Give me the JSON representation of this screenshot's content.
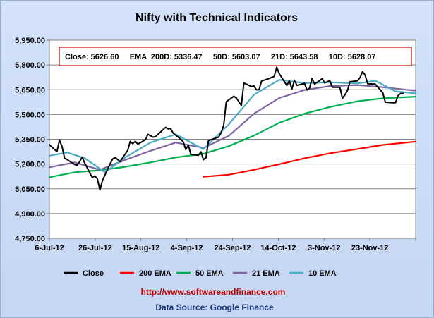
{
  "chart_data": {
    "type": "line",
    "title": "Nifty with Technical Indicators",
    "xlabel": "",
    "ylabel": "",
    "ylim": [
      4750,
      5950
    ],
    "yticks": [
      4750,
      4900,
      5050,
      5200,
      5350,
      5500,
      5650,
      5800,
      5950
    ],
    "ytick_labels": [
      "4,750.00",
      "4,900.00",
      "5,050.00",
      "5,200.00",
      "5,350.00",
      "5,500.00",
      "5,650.00",
      "5,800.00",
      "5,950.00"
    ],
    "xtick_labels": [
      "6-Jul-12",
      "26-Jul-12",
      "15-Aug-12",
      "4-Sep-12",
      "24-Sep-12",
      "14-Oct-12",
      "3-Nov-12",
      "23-Nov-12"
    ],
    "x_start": "6-Jul-12",
    "x_end": "28-Nov-12",
    "grid": true,
    "legend_position": "bottom",
    "info_box": "Close: 5626.60     EMA  200D: 5336.47     50D: 5603.07     21D: 5643.58     10D: 5628.07",
    "series": [
      {
        "name": "Close",
        "color": "#000000",
        "points": [
          [
            "6-Jul-12",
            5317
          ],
          [
            "9-Jul-12",
            5275
          ],
          [
            "10-Jul-12",
            5345
          ],
          [
            "11-Jul-12",
            5306
          ],
          [
            "12-Jul-12",
            5236
          ],
          [
            "13-Jul-12",
            5227
          ],
          [
            "16-Jul-12",
            5197
          ],
          [
            "17-Jul-12",
            5192
          ],
          [
            "18-Jul-12",
            5216
          ],
          [
            "19-Jul-12",
            5242
          ],
          [
            "20-Jul-12",
            5205
          ],
          [
            "23-Jul-12",
            5118
          ],
          [
            "24-Jul-12",
            5128
          ],
          [
            "25-Jul-12",
            5110
          ],
          [
            "26-Jul-12",
            5043
          ],
          [
            "27-Jul-12",
            5100
          ],
          [
            "30-Jul-12",
            5200
          ],
          [
            "31-Jul-12",
            5230
          ],
          [
            "1-Aug-12",
            5240
          ],
          [
            "2-Aug-12",
            5228
          ],
          [
            "3-Aug-12",
            5215
          ],
          [
            "6-Aug-12",
            5283
          ],
          [
            "7-Aug-12",
            5337
          ],
          [
            "8-Aug-12",
            5323
          ],
          [
            "9-Aug-12",
            5338
          ],
          [
            "10-Aug-12",
            5320
          ],
          [
            "13-Aug-12",
            5347
          ],
          [
            "14-Aug-12",
            5380
          ],
          [
            "16-Aug-12",
            5363
          ],
          [
            "17-Aug-12",
            5366
          ],
          [
            "21-Aug-12",
            5422
          ],
          [
            "22-Aug-12",
            5413
          ],
          [
            "23-Aug-12",
            5415
          ],
          [
            "24-Aug-12",
            5387
          ],
          [
            "27-Aug-12",
            5350
          ],
          [
            "28-Aug-12",
            5334
          ],
          [
            "29-Aug-12",
            5288
          ],
          [
            "30-Aug-12",
            5315
          ],
          [
            "31-Aug-12",
            5258
          ],
          [
            "3-Sep-12",
            5253
          ],
          [
            "4-Sep-12",
            5274
          ],
          [
            "5-Sep-12",
            5226
          ],
          [
            "6-Sep-12",
            5238
          ],
          [
            "7-Sep-12",
            5342
          ],
          [
            "10-Sep-12",
            5358
          ],
          [
            "11-Sep-12",
            5363
          ],
          [
            "12-Sep-12",
            5390
          ],
          [
            "13-Sep-12",
            5435
          ],
          [
            "14-Sep-12",
            5577
          ],
          [
            "17-Sep-12",
            5610
          ],
          [
            "18-Sep-12",
            5600
          ],
          [
            "20-Sep-12",
            5555
          ],
          [
            "21-Sep-12",
            5691
          ],
          [
            "24-Sep-12",
            5669
          ],
          [
            "25-Sep-12",
            5673
          ],
          [
            "26-Sep-12",
            5649
          ],
          [
            "27-Sep-12",
            5650
          ],
          [
            "28-Sep-12",
            5703
          ],
          [
            "1-Oct-12",
            5718
          ],
          [
            "3-Oct-12",
            5731
          ],
          [
            "4-Oct-12",
            5787
          ],
          [
            "5-Oct-12",
            5747
          ],
          [
            "8-Oct-12",
            5676
          ],
          [
            "9-Oct-12",
            5705
          ],
          [
            "10-Oct-12",
            5653
          ],
          [
            "11-Oct-12",
            5708
          ],
          [
            "12-Oct-12",
            5676
          ],
          [
            "15-Oct-12",
            5688
          ],
          [
            "16-Oct-12",
            5648
          ],
          [
            "17-Oct-12",
            5660
          ],
          [
            "18-Oct-12",
            5718
          ],
          [
            "19-Oct-12",
            5684
          ],
          [
            "22-Oct-12",
            5717
          ],
          [
            "23-Oct-12",
            5691
          ],
          [
            "25-Oct-12",
            5705
          ],
          [
            "26-Oct-12",
            5665
          ],
          [
            "29-Oct-12",
            5665
          ],
          [
            "30-Oct-12",
            5598
          ],
          [
            "31-Oct-12",
            5619
          ],
          [
            "1-Nov-12",
            5645
          ],
          [
            "2-Nov-12",
            5698
          ],
          [
            "5-Nov-12",
            5704
          ],
          [
            "6-Nov-12",
            5724
          ],
          [
            "7-Nov-12",
            5760
          ],
          [
            "8-Nov-12",
            5738
          ],
          [
            "9-Nov-12",
            5686
          ],
          [
            "12-Nov-12",
            5684
          ],
          [
            "13-Nov-12",
            5666
          ],
          [
            "15-Nov-12",
            5631
          ],
          [
            "16-Nov-12",
            5574
          ],
          [
            "19-Nov-12",
            5571
          ],
          [
            "20-Nov-12",
            5571
          ],
          [
            "21-Nov-12",
            5614
          ],
          [
            "22-Nov-12",
            5627
          ],
          [
            "23-Nov-12",
            5627
          ]
        ]
      },
      {
        "name": "200 EMA",
        "color": "#ff0000",
        "points": [
          [
            "5-Sep-12",
            5123
          ],
          [
            "15-Sep-12",
            5135
          ],
          [
            "25-Sep-12",
            5165
          ],
          [
            "5-Oct-12",
            5199
          ],
          [
            "15-Oct-12",
            5235
          ],
          [
            "25-Oct-12",
            5265
          ],
          [
            "5-Nov-12",
            5291
          ],
          [
            "15-Nov-12",
            5316
          ],
          [
            "28-Nov-12",
            5336
          ]
        ]
      },
      {
        "name": "50 EMA",
        "color": "#00b050",
        "points": [
          [
            "6-Jul-12",
            5120
          ],
          [
            "16-Jul-12",
            5150
          ],
          [
            "26-Jul-12",
            5162
          ],
          [
            "5-Aug-12",
            5183
          ],
          [
            "15-Aug-12",
            5210
          ],
          [
            "25-Aug-12",
            5240
          ],
          [
            "5-Sep-12",
            5262
          ],
          [
            "15-Sep-12",
            5308
          ],
          [
            "25-Sep-12",
            5372
          ],
          [
            "5-Oct-12",
            5450
          ],
          [
            "15-Oct-12",
            5505
          ],
          [
            "25-Oct-12",
            5545
          ],
          [
            "5-Nov-12",
            5580
          ],
          [
            "15-Nov-12",
            5598
          ],
          [
            "28-Nov-12",
            5608
          ]
        ]
      },
      {
        "name": "21 EMA",
        "color": "#8064a2",
        "points": [
          [
            "6-Jul-12",
            5180
          ],
          [
            "16-Jul-12",
            5210
          ],
          [
            "26-Jul-12",
            5165
          ],
          [
            "5-Aug-12",
            5225
          ],
          [
            "15-Aug-12",
            5280
          ],
          [
            "25-Aug-12",
            5330
          ],
          [
            "5-Sep-12",
            5298
          ],
          [
            "15-Sep-12",
            5370
          ],
          [
            "25-Sep-12",
            5505
          ],
          [
            "5-Oct-12",
            5600
          ],
          [
            "15-Oct-12",
            5648
          ],
          [
            "25-Oct-12",
            5672
          ],
          [
            "5-Nov-12",
            5678
          ],
          [
            "15-Nov-12",
            5665
          ],
          [
            "28-Nov-12",
            5644
          ]
        ]
      },
      {
        "name": "10 EMA",
        "color": "#4bacc6",
        "points": [
          [
            "6-Jul-12",
            5250
          ],
          [
            "13-Jul-12",
            5270
          ],
          [
            "20-Jul-12",
            5235
          ],
          [
            "28-Jul-12",
            5150
          ],
          [
            "5-Aug-12",
            5240
          ],
          [
            "15-Aug-12",
            5330
          ],
          [
            "25-Aug-12",
            5380
          ],
          [
            "5-Sep-12",
            5290
          ],
          [
            "15-Sep-12",
            5440
          ],
          [
            "25-Sep-12",
            5620
          ],
          [
            "5-Oct-12",
            5710
          ],
          [
            "15-Oct-12",
            5690
          ],
          [
            "25-Oct-12",
            5695
          ],
          [
            "5-Nov-12",
            5688
          ],
          [
            "12-Nov-12",
            5705
          ],
          [
            "20-Nov-12",
            5640
          ],
          [
            "28-Nov-12",
            5628
          ]
        ]
      }
    ]
  },
  "footer": {
    "url": "http://www.softwareandfinance.com",
    "source": "Data Source: Google Finance"
  }
}
